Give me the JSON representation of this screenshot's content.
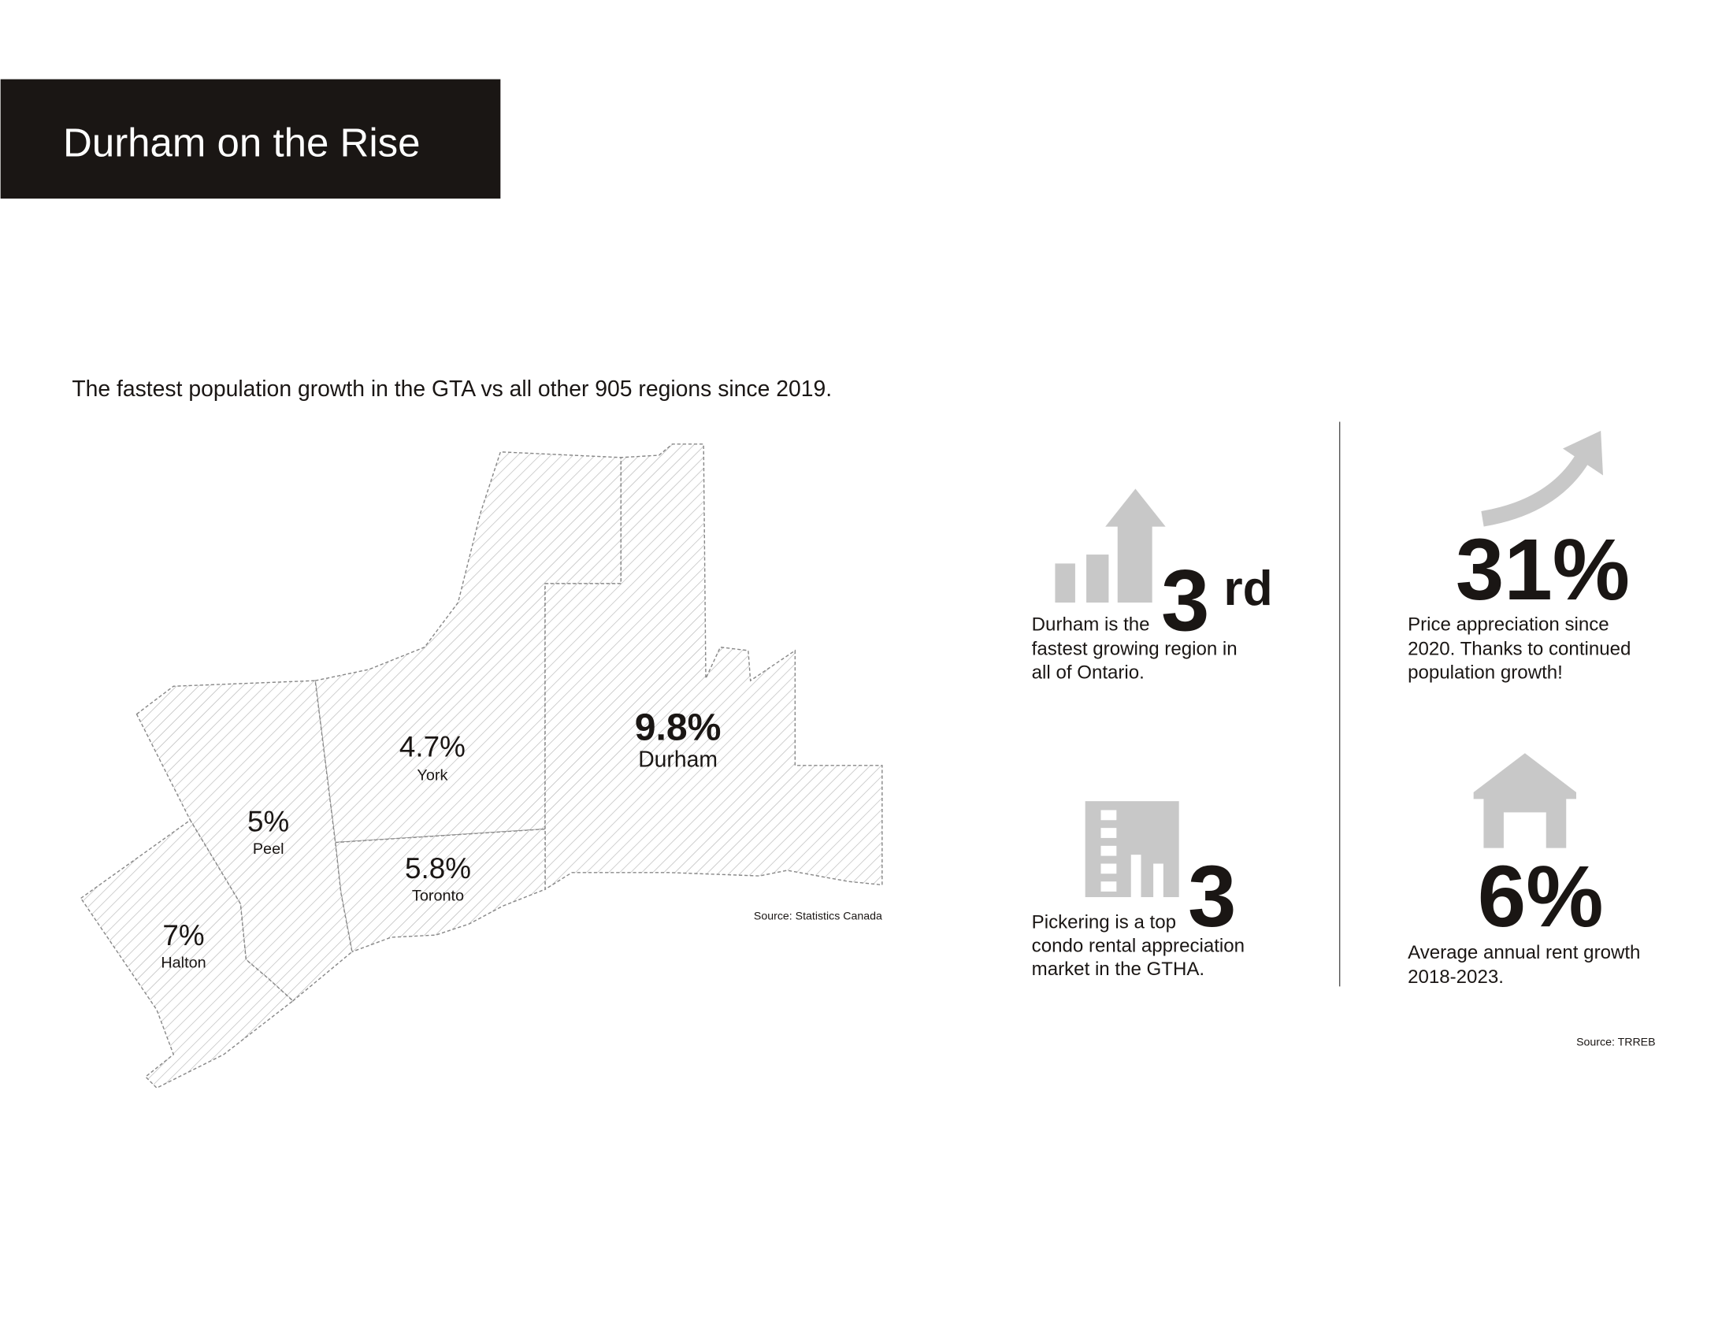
{
  "header": {
    "title": "Durham on the Rise"
  },
  "subtitle": "The fastest population growth in the GTA vs all other 905 regions since 2019.",
  "map": {
    "regions": [
      {
        "value": "9.8%",
        "label": "Durham"
      },
      {
        "value": "4.7%",
        "label": "York"
      },
      {
        "value": "5.8%",
        "label": "Toronto"
      },
      {
        "value": "5%",
        "label": "Peel"
      },
      {
        "value": "7%",
        "label": "Halton"
      }
    ],
    "source": "Source: Statistics Canada"
  },
  "stats": [
    {
      "value": "3",
      "suffix": "rd",
      "lines": [
        "Durham is the",
        "fastest growing region in",
        "all of Ontario."
      ]
    },
    {
      "value": "31%",
      "lines": [
        "Price appreciation since",
        "2020. Thanks to continued",
        "population growth!"
      ]
    },
    {
      "value": "3",
      "lines": [
        "Pickering is a top",
        "condo rental appreciation",
        "market in the GTHA."
      ]
    },
    {
      "value": "6%",
      "lines": [
        "Average annual rent growth",
        "2018-2023."
      ]
    }
  ],
  "stats_source": "Source: TRREB"
}
